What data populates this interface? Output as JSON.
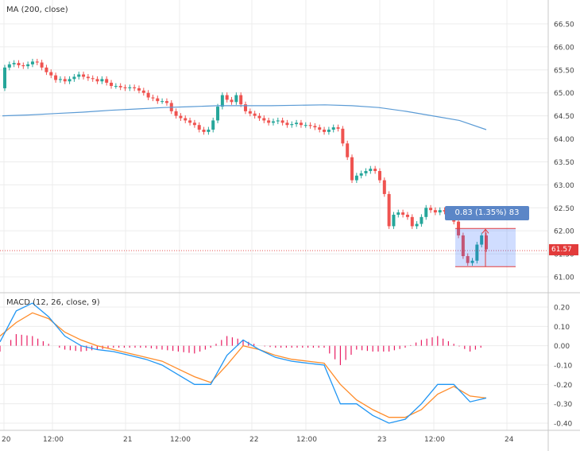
{
  "header": {
    "main_legend": "MA (200, close)",
    "macd_legend": "MACD (12, 26, close, 9)"
  },
  "tooltip": {
    "text": "0.83 (1.35%) 83"
  },
  "price_tag": {
    "text": "61.57"
  },
  "colors": {
    "up": "#26a69a",
    "down": "#ef5350",
    "ma": "#5b9bd5",
    "macd": "#2196f3",
    "signal": "#ff8c2a",
    "hist": "#e91e63",
    "measure": "#2962ff",
    "tag": "#e23b3b"
  },
  "chart_data": [
    {
      "type": "candlestick",
      "title": "MA (200, close)",
      "ylim": [
        60.75,
        67.0
      ],
      "y_ticks": [
        "66.50",
        "66.00",
        "65.50",
        "65.00",
        "64.50",
        "64.00",
        "63.50",
        "63.00",
        "62.50",
        "62.00",
        "61.50",
        "61.00"
      ],
      "x_ticks": [
        "20",
        "12:00",
        "21",
        "12:00",
        "22",
        "12:00",
        "23",
        "12:00",
        "24"
      ],
      "last_price": 61.57,
      "close_series": [
        65.55,
        65.62,
        65.65,
        65.6,
        65.58,
        65.62,
        65.68,
        65.66,
        65.55,
        65.45,
        65.38,
        65.28,
        65.3,
        65.25,
        65.3,
        65.35,
        65.4,
        65.35,
        65.32,
        65.3,
        65.25,
        65.3,
        65.22,
        65.15,
        65.15,
        65.12,
        65.1,
        65.12,
        65.1,
        65.05,
        65.0,
        64.9,
        64.88,
        64.82,
        64.82,
        64.78,
        64.6,
        64.5,
        64.45,
        64.4,
        64.35,
        64.3,
        64.2,
        64.15,
        64.2,
        64.4,
        64.7,
        64.95,
        64.85,
        64.8,
        64.95,
        64.75,
        64.6,
        64.55,
        64.5,
        64.45,
        64.4,
        64.35,
        64.38,
        64.4,
        64.35,
        64.3,
        64.32,
        64.35,
        64.3,
        64.3,
        64.28,
        64.25,
        64.2,
        64.15,
        64.2,
        64.25,
        64.22,
        63.9,
        63.6,
        63.1,
        63.2,
        63.25,
        63.3,
        63.35,
        63.3,
        63.1,
        62.8,
        62.1,
        62.35,
        62.4,
        62.35,
        62.3,
        62.1,
        62.15,
        62.3,
        62.5,
        62.45,
        62.4,
        62.45,
        62.42,
        62.3,
        62.2,
        61.9,
        61.45,
        61.3,
        61.35,
        61.7,
        61.9,
        61.6
      ],
      "ma_series": [
        64.5,
        64.52,
        64.55,
        64.58,
        64.62,
        64.65,
        64.68,
        64.7,
        64.72,
        64.72,
        64.72,
        64.73,
        64.74,
        64.72,
        64.68,
        64.6,
        64.5,
        64.4,
        64.2
      ],
      "measurement": {
        "change": 0.83,
        "percent": 1.35,
        "bars": 83,
        "from_price": 62.05,
        "to_price": 61.22
      }
    },
    {
      "type": "macd",
      "title": "MACD (12, 26, close, 9)",
      "ylim": [
        -0.45,
        0.25
      ],
      "y_ticks": [
        "0.20",
        "0.10",
        "0.00",
        "-0.10",
        "-0.20",
        "-0.30",
        "-0.40"
      ],
      "macd_series": [
        0.02,
        0.18,
        0.22,
        0.15,
        0.05,
        0.0,
        -0.02,
        -0.03,
        -0.05,
        -0.07,
        -0.1,
        -0.15,
        -0.2,
        -0.2,
        -0.05,
        0.03,
        -0.02,
        -0.06,
        -0.08,
        -0.09,
        -0.1,
        -0.3,
        -0.3,
        -0.36,
        -0.4,
        -0.38,
        -0.3,
        -0.2,
        -0.2,
        -0.29,
        -0.27
      ],
      "signal_series": [
        0.05,
        0.12,
        0.17,
        0.14,
        0.07,
        0.03,
        0.0,
        -0.02,
        -0.04,
        -0.06,
        -0.08,
        -0.12,
        -0.16,
        -0.19,
        -0.1,
        0.0,
        -0.02,
        -0.05,
        -0.07,
        -0.08,
        -0.09,
        -0.2,
        -0.28,
        -0.33,
        -0.37,
        -0.37,
        -0.33,
        -0.25,
        -0.21,
        -0.26,
        -0.27
      ]
    }
  ]
}
